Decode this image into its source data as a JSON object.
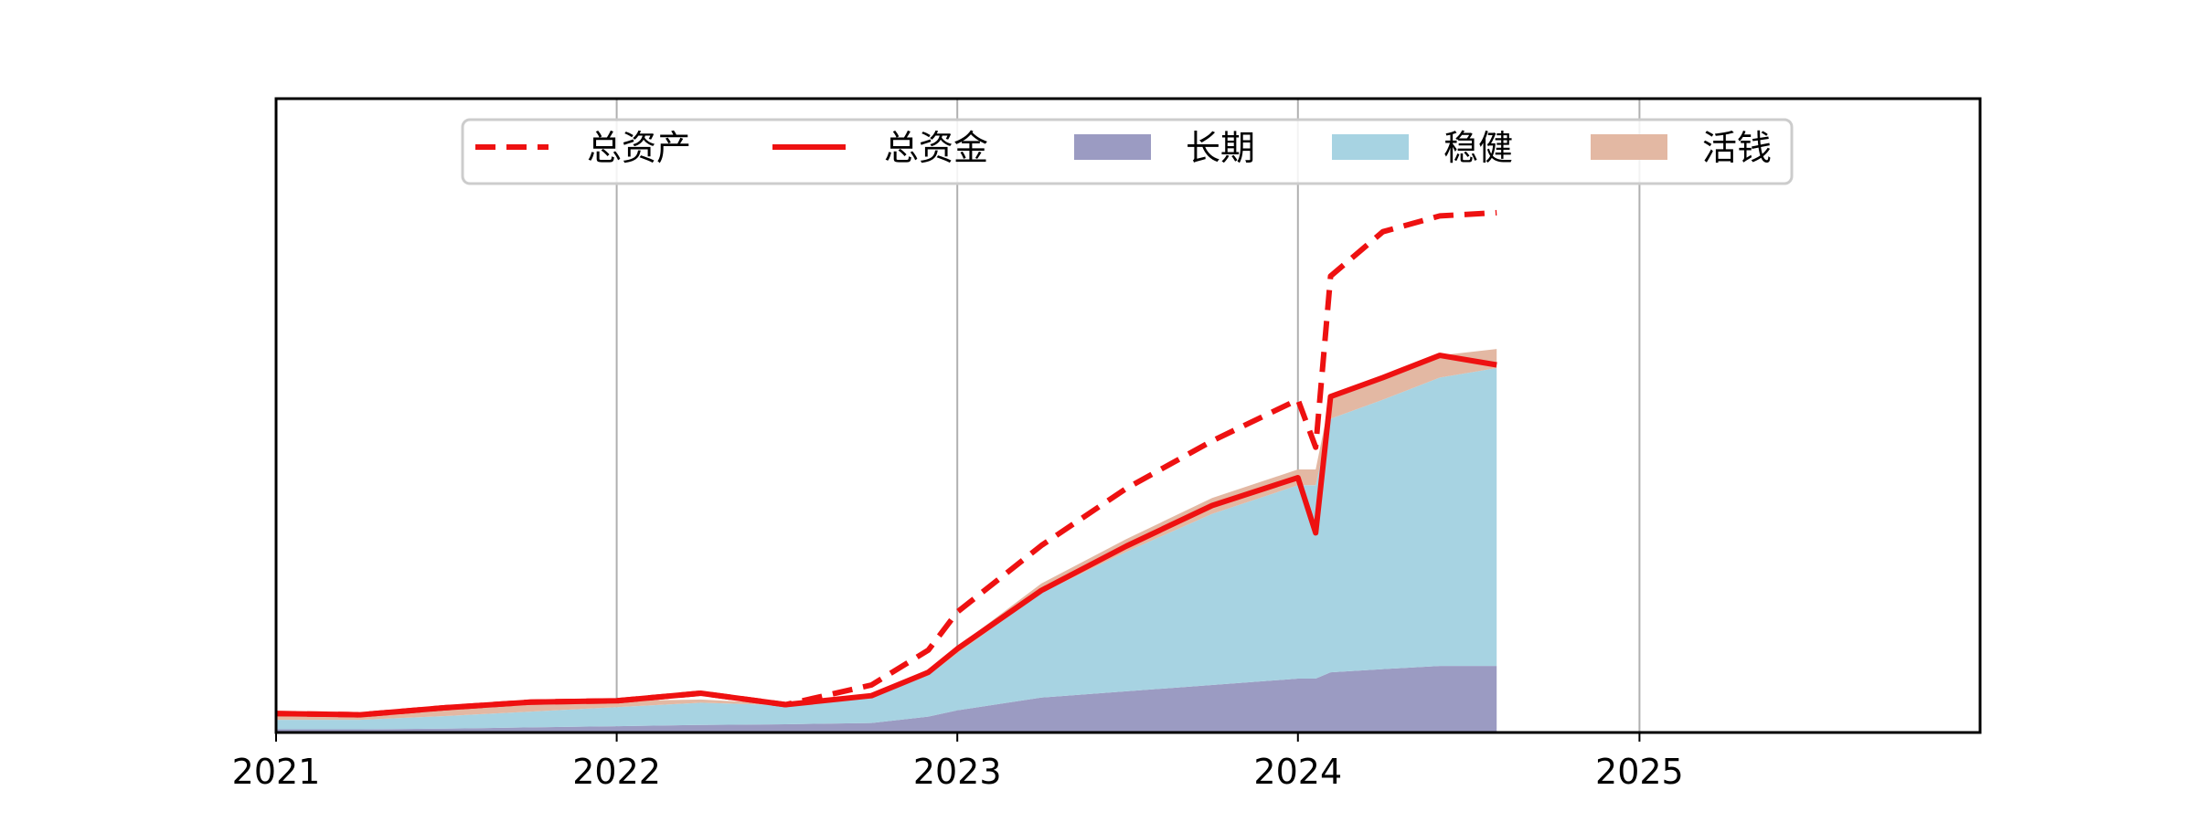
{
  "chart_data": {
    "type": "area",
    "title": "",
    "xlabel": "",
    "ylabel": "",
    "x_ticks": [
      "2021",
      "2022",
      "2023",
      "2024",
      "2025"
    ],
    "xlim": [
      "2021-01-01",
      "2026-01-01"
    ],
    "ylim": [
      0,
      100
    ],
    "y_ticks_visible": false,
    "grid": "vertical",
    "legend_placement": "top-center",
    "colors": {
      "总资产": "#ee1111",
      "总资金": "#ee1111",
      "长期": "#9b9bc2",
      "稳健": "#a7d3e2",
      "活钱": "#e3b8a3"
    },
    "x": [
      "2021-01-01",
      "2021-04-01",
      "2021-07-01",
      "2021-10-01",
      "2022-01-01",
      "2022-04-01",
      "2022-07-01",
      "2022-10-01",
      "2022-12-01",
      "2023-01-01",
      "2023-04-01",
      "2023-07-01",
      "2023-10-01",
      "2024-01-01",
      "2024-01-20",
      "2024-02-05",
      "2024-04-01",
      "2024-06-01",
      "2024-08-01"
    ],
    "series": [
      {
        "name": "长期",
        "kind": "stack",
        "values": [
          0.5,
          0.5,
          0.6,
          0.8,
          1.0,
          1.2,
          1.3,
          1.5,
          2.5,
          3.5,
          5.5,
          6.5,
          7.5,
          8.5,
          8.5,
          9.5,
          10,
          10.5,
          10.5
        ]
      },
      {
        "name": "稳健",
        "kind": "stack",
        "values": [
          1.5,
          1.5,
          2.0,
          2.5,
          3.0,
          3.5,
          3.0,
          4.0,
          6.5,
          9.0,
          16.5,
          22.0,
          27.0,
          30.5,
          30.5,
          40.0,
          42.5,
          45.5,
          47.0
        ]
      },
      {
        "name": "活钱",
        "kind": "stack",
        "values": [
          1.0,
          1.0,
          1.5,
          1.5,
          1.0,
          0.5,
          0.2,
          0.5,
          1.0,
          1.0,
          1.5,
          2.0,
          2.5,
          2.5,
          2.5,
          3.5,
          3.5,
          3.5,
          3.0
        ]
      },
      {
        "name": "总资金",
        "kind": "line",
        "style": "solid",
        "values": [
          3,
          2.8,
          3.9,
          4.8,
          5.0,
          6.2,
          4.4,
          5.8,
          9.5,
          13.2,
          22.4,
          29.4,
          35.8,
          40.2,
          31.5,
          53.0,
          56.0,
          59.5,
          58.0
        ]
      },
      {
        "name": "总资产",
        "kind": "line",
        "style": "dashed",
        "values": [
          3,
          2.8,
          3.9,
          4.8,
          5.0,
          6.2,
          4.4,
          7.5,
          13.0,
          19.0,
          29.5,
          38.5,
          46.0,
          52.5,
          45.0,
          72.0,
          79.0,
          81.5,
          82.0
        ]
      }
    ],
    "legend": [
      "总资产",
      "总资金",
      "长期",
      "稳健",
      "活钱"
    ]
  }
}
